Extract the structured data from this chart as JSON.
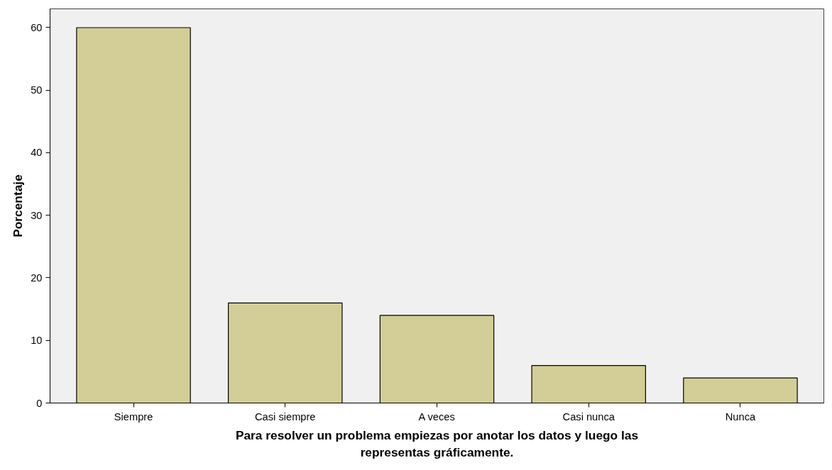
{
  "chart_data": {
    "type": "bar",
    "categories": [
      "Siempre",
      "Casi siempre",
      "A veces",
      "Casi nunca",
      "Nunca"
    ],
    "values": [
      60,
      16,
      14,
      6,
      4
    ],
    "color": "#d3ce97",
    "xlabel": "Para resolver un problema empiezas por anotar los datos y luego las\nrepresentas gráficamente.",
    "ylabel": "Porcentaje",
    "ylim": [
      0,
      63
    ],
    "yticks": [
      0,
      10,
      20,
      30,
      40,
      50,
      60
    ],
    "grid": false
  }
}
